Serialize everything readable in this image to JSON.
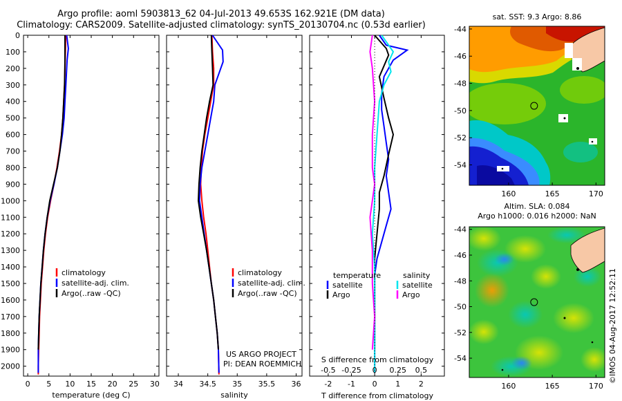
{
  "header": {
    "title_line1": "Argo profile: aoml 5903813_62 04-Jul-2013 49.653S 162.921E (DM data)",
    "title_line2": "Climatology: CARS2009. Satellite-adjusted climatology: synTS_20130704.nc (0.53d earlier)"
  },
  "stamp": "©IMOS 04-Aug-2017 12:52:11",
  "chart_data": [
    {
      "type": "line",
      "id": "temperature",
      "xlabel": "temperature (deg C)",
      "xlim": [
        -1,
        31
      ],
      "ylim": [
        0,
        2060
      ],
      "xticks": [
        0,
        5,
        10,
        15,
        20,
        25,
        30
      ],
      "yticks": [
        0,
        100,
        200,
        300,
        400,
        500,
        600,
        700,
        800,
        900,
        1000,
        1100,
        1200,
        1300,
        1400,
        1500,
        1600,
        1700,
        1800,
        1900,
        2000
      ],
      "legend": [
        "climatology",
        "satellite-adj. clim.",
        "Argo(..raw -QC)"
      ],
      "series": [
        {
          "name": "climatology",
          "color": "#ff0000",
          "x": [
            9.0,
            8.9,
            8.8,
            8.7,
            8.5,
            8.3,
            8.0,
            7.5,
            6.9,
            6.2,
            5.4,
            4.7,
            4.2,
            3.8,
            3.5,
            3.2,
            3.0,
            2.8,
            2.7,
            2.6,
            2.5,
            2.5
          ],
          "y": [
            0,
            100,
            200,
            300,
            400,
            500,
            600,
            700,
            800,
            900,
            1000,
            1100,
            1200,
            1300,
            1400,
            1500,
            1600,
            1700,
            1800,
            1900,
            2000,
            2050
          ]
        },
        {
          "name": "satellite-adj. clim.",
          "color": "#0000ff",
          "x": [
            9.2,
            9.6,
            9.3,
            9.0,
            8.8,
            8.6,
            8.2,
            7.6,
            7.0,
            6.2,
            5.3,
            4.6,
            4.1,
            3.7,
            3.4,
            3.1,
            2.9,
            2.7,
            2.6,
            2.5,
            2.5
          ],
          "y": [
            0,
            80,
            150,
            300,
            400,
            500,
            600,
            700,
            800,
            900,
            1000,
            1100,
            1200,
            1300,
            1400,
            1500,
            1600,
            1700,
            1800,
            1900,
            2040
          ]
        },
        {
          "name": "Argo(..raw -QC)",
          "color": "#000000",
          "x": [
            8.8,
            8.8,
            8.7,
            8.5,
            8.3,
            8.0,
            7.6,
            7.0,
            6.1,
            5.2,
            4.6,
            4.1,
            3.7,
            3.4,
            3.1,
            2.9,
            2.7,
            2.6,
            2.5
          ],
          "y": [
            0,
            150,
            300,
            400,
            500,
            600,
            700,
            800,
            900,
            1000,
            1100,
            1200,
            1300,
            1400,
            1500,
            1600,
            1700,
            1800,
            1900
          ]
        }
      ]
    },
    {
      "type": "line",
      "id": "salinity",
      "xlabel": "salinity",
      "xlim": [
        33.8,
        36.1
      ],
      "ylim": [
        0,
        2060
      ],
      "xticks": [
        34,
        34.5,
        35,
        35.5,
        36
      ],
      "legend": [
        "climatology",
        "satellite-adj. clim.",
        "Argo(..raw -QC)"
      ],
      "annotation_line1": "US ARGO PROJECT",
      "annotation_line2": "PI: DEAN ROEMMICH",
      "series": [
        {
          "name": "climatology",
          "color": "#ff0000",
          "x": [
            34.57,
            34.58,
            34.6,
            34.6,
            34.55,
            34.5,
            34.45,
            34.41,
            34.39,
            34.38,
            34.4,
            34.43,
            34.47,
            34.5,
            34.53,
            34.56,
            34.6,
            34.63,
            34.66,
            34.68,
            34.69
          ],
          "y": [
            0,
            100,
            200,
            300,
            400,
            500,
            600,
            700,
            800,
            900,
            1000,
            1100,
            1200,
            1300,
            1400,
            1500,
            1600,
            1700,
            1800,
            1900,
            2050
          ]
        },
        {
          "name": "satellite-adj. clim.",
          "color": "#0000ff",
          "x": [
            34.58,
            34.75,
            34.76,
            34.62,
            34.6,
            34.55,
            34.5,
            34.45,
            34.4,
            34.37,
            34.36,
            34.4,
            34.44,
            34.48,
            34.52,
            34.56,
            34.6,
            34.63,
            34.66,
            34.68,
            34.69
          ],
          "y": [
            0,
            90,
            160,
            300,
            400,
            500,
            600,
            700,
            800,
            900,
            1000,
            1100,
            1200,
            1300,
            1400,
            1500,
            1600,
            1700,
            1800,
            1900,
            2040
          ]
        },
        {
          "name": "Argo(..raw -QC)",
          "color": "#000000",
          "x": [
            34.56,
            34.57,
            34.58,
            34.59,
            34.53,
            34.48,
            34.44,
            34.4,
            34.37,
            34.35,
            34.34,
            34.38,
            34.43,
            34.48,
            34.52,
            34.56,
            34.6,
            34.63,
            34.66,
            34.68
          ],
          "y": [
            0,
            100,
            200,
            300,
            400,
            500,
            600,
            700,
            800,
            900,
            1000,
            1100,
            1200,
            1300,
            1400,
            1500,
            1600,
            1700,
            1800,
            1900
          ]
        }
      ]
    },
    {
      "type": "line",
      "id": "difference",
      "xlabel_top": "S difference from climatology",
      "xlabel_bottom": "T difference from climatology",
      "xlim_T": [
        -2.8,
        3.0
      ],
      "xticks_T": [
        -2,
        -1,
        0,
        1,
        2
      ],
      "s_tick_labels": [
        "-0.5",
        "-0.25",
        "0",
        "0.25",
        "0.5"
      ],
      "s_tick_values_in_T_units": [
        -2.0,
        -1.0,
        0.0,
        1.0,
        2.0
      ],
      "legend_left_title": "temperature",
      "legend_right_title": "salinity",
      "legend_entries": [
        {
          "label": "satellite",
          "color": "#0000ff"
        },
        {
          "label": "Argo",
          "color": "#000000"
        },
        {
          "label": "satellite",
          "color": "#00e5ee"
        },
        {
          "label": "Argo",
          "color": "#ff00ff"
        }
      ],
      "series": [
        {
          "name": "temperature satellite",
          "color": "#0000ff",
          "x": [
            0.2,
            0.5,
            1.4,
            0.8,
            0.4,
            0.3,
            0.3,
            0.4,
            0.5,
            0.6,
            0.5,
            0.6,
            0.7,
            0.5,
            0.3,
            0.1,
            0.0,
            0.0,
            0.0,
            0.0,
            0.0
          ],
          "y": [
            0,
            60,
            90,
            150,
            250,
            350,
            450,
            550,
            650,
            750,
            850,
            950,
            1050,
            1150,
            1250,
            1350,
            1450,
            1550,
            1650,
            1800,
            2040
          ]
        },
        {
          "name": "temperature Argo",
          "color": "#000000",
          "x": [
            0.0,
            0.5,
            0.6,
            0.2,
            0.4,
            0.6,
            0.8,
            0.6,
            0.4,
            0.2,
            0.2,
            0.1,
            0.0,
            0.0,
            0.0,
            0.0,
            0.0
          ],
          "y": [
            0,
            80,
            120,
            250,
            380,
            500,
            600,
            720,
            850,
            950,
            1050,
            1200,
            1350,
            1500,
            1650,
            1800,
            1900
          ]
        },
        {
          "name": "salinity satellite",
          "color": "#00e5ee",
          "x": [
            0.3,
            0.8,
            0.6,
            0.7,
            0.4,
            0.2,
            0.1,
            0.0,
            0.0,
            -0.1,
            0.0,
            0.0,
            0.0,
            0.0,
            0.0
          ],
          "y": [
            0,
            100,
            160,
            220,
            300,
            400,
            600,
            800,
            1000,
            1200,
            1400,
            1600,
            1800,
            1950,
            2040
          ]
        },
        {
          "name": "salinity Argo",
          "color": "#ff00ff",
          "x": [
            -0.1,
            -0.2,
            -0.1,
            0.0,
            -0.1,
            -0.1,
            0.0,
            -0.1,
            -0.2,
            -0.1,
            -0.1,
            0.0,
            -0.1
          ],
          "y": [
            0,
            100,
            200,
            400,
            600,
            800,
            900,
            1000,
            1100,
            1300,
            1500,
            1700,
            1900
          ]
        }
      ]
    },
    {
      "type": "heatmap",
      "id": "sst_map",
      "title": "sat. SST: 9.3  Argo: 8.86",
      "xlim": [
        155.5,
        171
      ],
      "ylim": [
        -55.5,
        -43.8
      ],
      "xticks": [
        160,
        165,
        170
      ],
      "yticks": [
        -44,
        -46,
        -48,
        -50,
        -52,
        -54
      ],
      "argo_position": [
        162.921,
        -49.653
      ]
    },
    {
      "type": "heatmap",
      "id": "sla_map",
      "title_line1": "Altim. SLA: 0.084",
      "title_line2": "Argo h1000: 0.016  h2000: NaN",
      "xlim": [
        155.5,
        171
      ],
      "ylim": [
        -55.5,
        -43.8
      ],
      "xticks": [
        160,
        165,
        170
      ],
      "yticks": [
        -44,
        -46,
        -48,
        -50,
        -52,
        -54
      ],
      "argo_position": [
        162.921,
        -49.653
      ]
    }
  ]
}
